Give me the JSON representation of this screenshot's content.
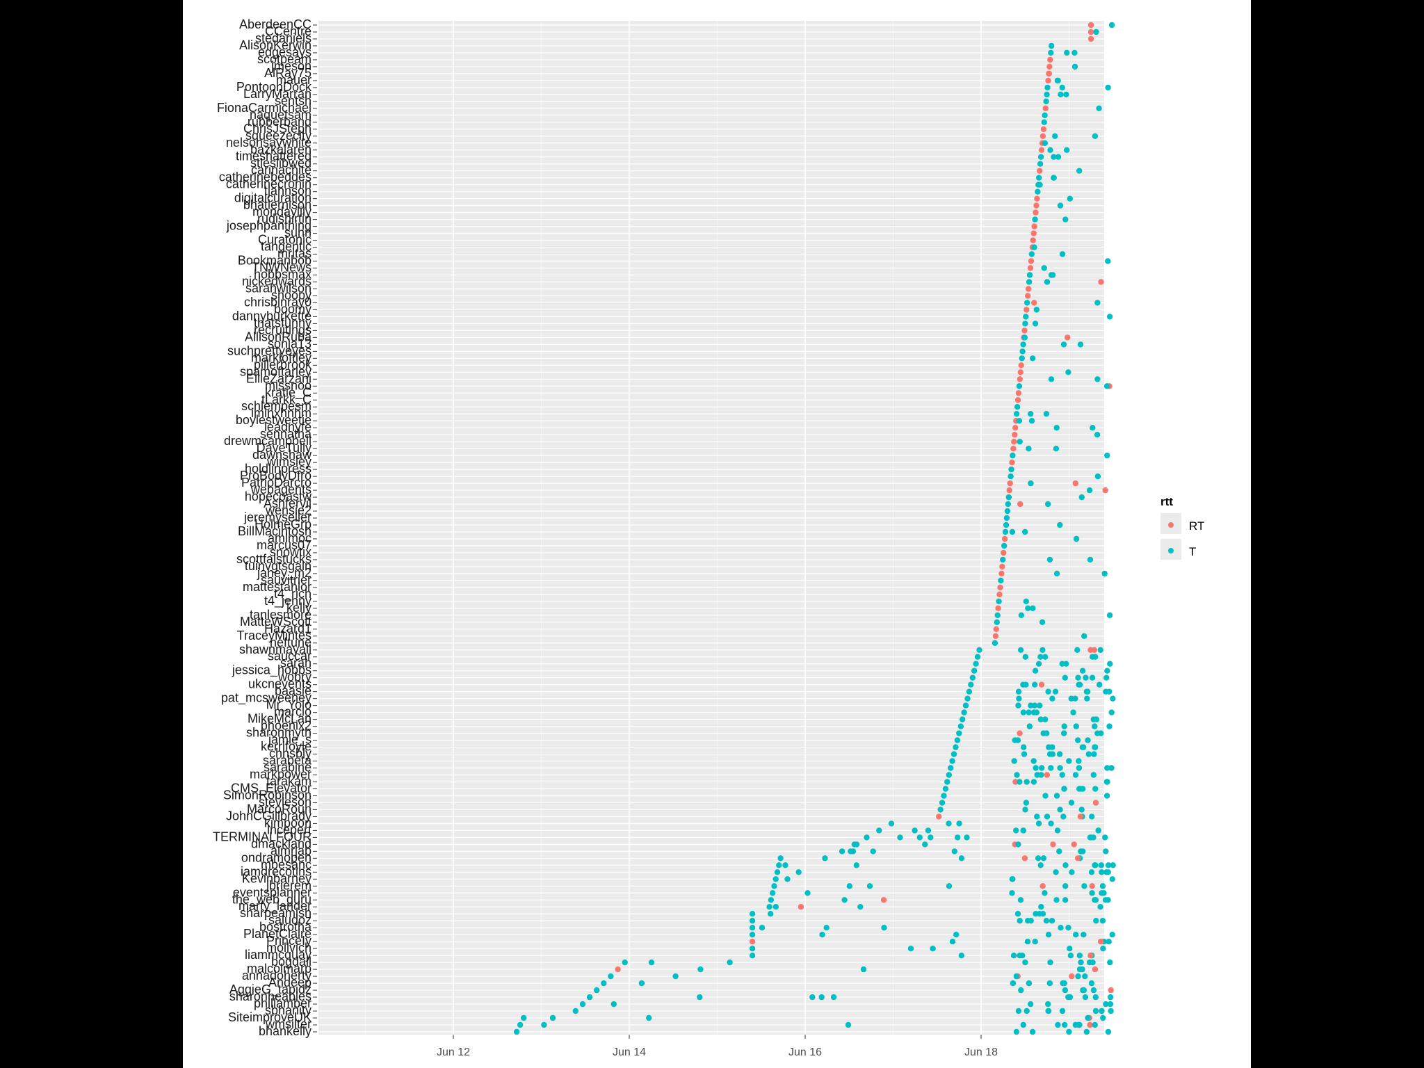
{
  "chart_data": {
    "type": "scatter",
    "x_axis": {
      "ticks": [
        "Jun 12",
        "Jun 14",
        "Jun 16",
        "Jun 18"
      ],
      "range_days": [
        10.5,
        19.9
      ]
    },
    "legend": {
      "title": "rtt",
      "placement": "right",
      "entries": [
        {
          "label": "RT",
          "color": "#F8766D"
        },
        {
          "label": "T",
          "color": "#00BFC4"
        }
      ]
    },
    "y_labels": [
      "AberdeenCC",
      "CCentre",
      "stedaniels",
      "AlisonKerwin",
      "edgesays",
      "scotpeam",
      "jmeson",
      "AlRay75",
      "mauer",
      "PontoonDock",
      "LarryMarran",
      "sentsh",
      "FionaCarmichael",
      "naquetsam",
      "rubberband",
      "ChrisJSteph",
      "squeezecity",
      "nelsonsaywhite",
      "bazkalaren",
      "timeshattered",
      "stleslibwed",
      "carinachite",
      "catherinebeddes",
      "catherinecronin",
      "tjahnson",
      "digitalcuration",
      "bhatlernison",
      "mondaylily",
      "rudishirtin",
      "josephpanthing",
      "sunn",
      "Curatonic",
      "tangentic",
      "mritas",
      "Bookmanbob",
      "TNWNews",
      "hobbsmax",
      "nickedwards",
      "sarahwilson",
      "snoopy",
      "chrisbinray0",
      "boomy",
      "dannyburkette",
      "thatsfunny",
      "recruitings",
      "AllisonRuba",
      "sonja13",
      "suchprettyeyes",
      "markloftley",
      "pillerbrook",
      "spamoftarley",
      "EllieZarzani",
      "missnoo",
      "kratie_C",
      "tLarkk_C",
      "schlempesm",
      "iminxhnhm",
      "boylestweetie",
      "leadnyfe",
      "sennatha",
      "drewmcampbell",
      "DaveTully",
      "dawnshaw",
      "wimsley",
      "holdlinpress",
      "ProBodyDfro",
      "PatrioDarcro",
      "webagents",
      "hopecoastw",
      "Ashfervil",
      "wensie2",
      "jeremyseller",
      "HolmeGrp",
      "BillMacintosh",
      "amlmoc",
      "marcus07",
      "snowtix",
      "scottfalstucks",
      "tuinvgtsgaln",
      "janey_m2",
      "sauvitrier",
      "mattestanlor",
      "t4_rich",
      "t4_jenny",
      "kelly",
      "tanlesmore",
      "MatteWScott",
      "Hazard1",
      "TraceyMintes",
      "neftune",
      "shawnmayall",
      "sauccar",
      "sarah",
      "jessica_hobbs",
      "wobry",
      "ukcnevents",
      "baasie",
      "pat_mcsweeney",
      "Mr_Yolo",
      "marcio",
      "MikeMcLan",
      "phoenix2",
      "sharonmyth",
      "jamie_s",
      "kerrifoyle",
      "chnsbly",
      "sarabeta",
      "sarabine",
      "markpower",
      "tarakam",
      "CMS_Elevator",
      "SimonRobinson",
      "stevleson",
      "MarcoRoun",
      "JohnCGillbrady",
      "kimpoon",
      "lncepert",
      "TERMINALFOUR",
      "dmackland",
      "almrjab",
      "ondramopen",
      "mbesanc",
      "iamdrecotins",
      "Kevinbarney",
      "jbrierem",
      "eventsplanner",
      "the_web_guru",
      "marty_lander",
      "sharpeamish",
      "saludoz",
      "bostrotha",
      "PlanetClaire",
      "PrinceIy",
      "mollvich",
      "liammcquay",
      "bogdall",
      "malcolmarp",
      "annadoherty",
      "Andeep",
      "AggieG_tapidz",
      "sharonheables",
      "phillamber",
      "sbhanity",
      "SiteimproveUK",
      "wmsilter",
      "bhankelly"
    ]
  }
}
